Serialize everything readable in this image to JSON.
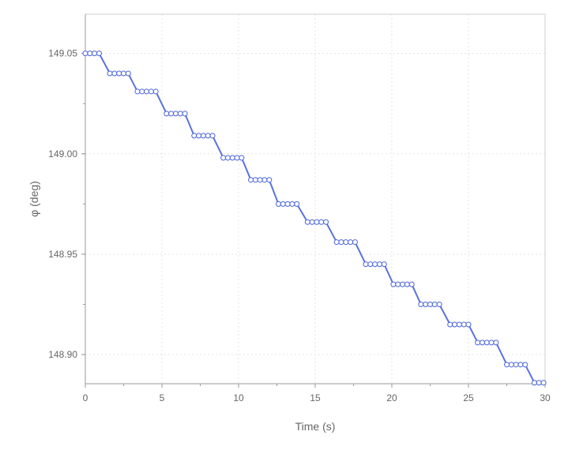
{
  "chart_data": {
    "type": "line",
    "title": "",
    "xlabel": "Time (s)",
    "ylabel": "φ (deg)",
    "xlim": [
      0,
      30
    ],
    "ylim": [
      148.8855,
      149.0695
    ],
    "x_ticks": [
      0,
      5,
      10,
      15,
      20,
      25,
      30
    ],
    "y_ticks": [
      148.9,
      148.95,
      149.0,
      149.05
    ],
    "x_tick_labels": [
      "0",
      "5",
      "10",
      "15",
      "20",
      "25",
      "30"
    ],
    "y_tick_labels": [
      "148.90",
      "148.95",
      "149.00",
      "149.05"
    ],
    "grid": true,
    "legend": "none",
    "colors": {
      "line": "#5a72e0",
      "marker_fill": "#ffffff",
      "marker_stroke": "#4a64d8",
      "grid": "#e3e3e3",
      "axis": "#9a9a9a"
    },
    "series": [
      {
        "values": [
          [
            0.0,
            149.05
          ],
          [
            0.3,
            149.05
          ],
          [
            0.6,
            149.05
          ],
          [
            0.9,
            149.05
          ],
          [
            1.6,
            149.04
          ],
          [
            1.9,
            149.04
          ],
          [
            2.2,
            149.04
          ],
          [
            2.5,
            149.04
          ],
          [
            2.8,
            149.04
          ],
          [
            3.4,
            149.031
          ],
          [
            3.7,
            149.031
          ],
          [
            4.0,
            149.031
          ],
          [
            4.3,
            149.031
          ],
          [
            4.6,
            149.031
          ],
          [
            5.3,
            149.02
          ],
          [
            5.6,
            149.02
          ],
          [
            5.9,
            149.02
          ],
          [
            6.2,
            149.02
          ],
          [
            6.5,
            149.02
          ],
          [
            7.1,
            149.009
          ],
          [
            7.4,
            149.009
          ],
          [
            7.7,
            149.009
          ],
          [
            8.0,
            149.009
          ],
          [
            8.3,
            149.009
          ],
          [
            9.0,
            148.998
          ],
          [
            9.3,
            148.998
          ],
          [
            9.6,
            148.998
          ],
          [
            9.9,
            148.998
          ],
          [
            10.2,
            148.998
          ],
          [
            10.8,
            148.987
          ],
          [
            11.1,
            148.987
          ],
          [
            11.4,
            148.987
          ],
          [
            11.7,
            148.987
          ],
          [
            12.0,
            148.987
          ],
          [
            12.6,
            148.975
          ],
          [
            12.9,
            148.975
          ],
          [
            13.2,
            148.975
          ],
          [
            13.5,
            148.975
          ],
          [
            13.8,
            148.975
          ],
          [
            14.5,
            148.966
          ],
          [
            14.8,
            148.966
          ],
          [
            15.1,
            148.966
          ],
          [
            15.4,
            148.966
          ],
          [
            15.7,
            148.966
          ],
          [
            16.4,
            148.956
          ],
          [
            16.7,
            148.956
          ],
          [
            17.0,
            148.956
          ],
          [
            17.3,
            148.956
          ],
          [
            17.6,
            148.956
          ],
          [
            18.3,
            148.945
          ],
          [
            18.6,
            148.945
          ],
          [
            18.9,
            148.945
          ],
          [
            19.2,
            148.945
          ],
          [
            19.5,
            148.945
          ],
          [
            20.1,
            148.935
          ],
          [
            20.4,
            148.935
          ],
          [
            20.7,
            148.935
          ],
          [
            21.0,
            148.935
          ],
          [
            21.3,
            148.935
          ],
          [
            21.9,
            148.925
          ],
          [
            22.2,
            148.925
          ],
          [
            22.5,
            148.925
          ],
          [
            22.8,
            148.925
          ],
          [
            23.1,
            148.925
          ],
          [
            23.8,
            148.915
          ],
          [
            24.1,
            148.915
          ],
          [
            24.4,
            148.915
          ],
          [
            24.7,
            148.915
          ],
          [
            25.0,
            148.915
          ],
          [
            25.6,
            148.906
          ],
          [
            25.9,
            148.906
          ],
          [
            26.2,
            148.906
          ],
          [
            26.5,
            148.906
          ],
          [
            26.8,
            148.906
          ],
          [
            27.5,
            148.895
          ],
          [
            27.8,
            148.895
          ],
          [
            28.1,
            148.895
          ],
          [
            28.4,
            148.895
          ],
          [
            28.7,
            148.895
          ],
          [
            29.3,
            148.886
          ],
          [
            29.6,
            148.886
          ],
          [
            29.9,
            148.886
          ]
        ]
      }
    ]
  }
}
